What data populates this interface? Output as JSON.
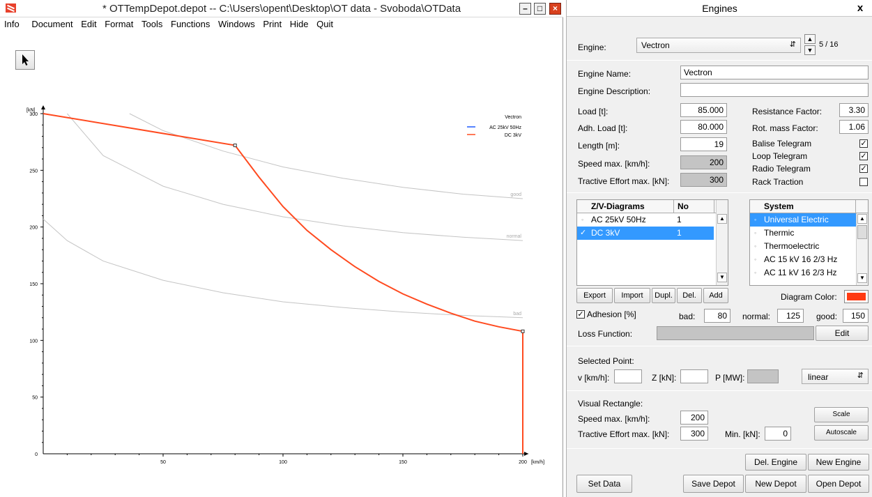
{
  "main_window": {
    "title": "* OTTempDepot.depot  --  C:\\Users\\opent\\Desktop\\OT data - Svoboda\\OTData",
    "menu": [
      "Info",
      "Document",
      "Edit",
      "Format",
      "Tools",
      "Functions",
      "Windows",
      "Print",
      "Hide",
      "Quit"
    ]
  },
  "chart_data": {
    "type": "line",
    "title": "",
    "xlabel": "[km/h]",
    "ylabel": "[kN]",
    "xlim": [
      0,
      200
    ],
    "ylim": [
      0,
      300
    ],
    "x_ticks": [
      50,
      100,
      150,
      200
    ],
    "y_ticks": [
      0,
      50,
      100,
      150,
      200,
      250,
      300
    ],
    "legend": {
      "title": "Vectron",
      "position": "top-right"
    },
    "series": [
      {
        "name": "AC 25kV 50Hz",
        "color": "#1e5bff",
        "x": [
          0,
          80,
          200
        ],
        "y": [
          300,
          272,
          108
        ]
      },
      {
        "name": "DC 3kV",
        "color": "#ff4a1f",
        "x": [
          0,
          80,
          90,
          100,
          110,
          120,
          130,
          140,
          150,
          160,
          170,
          180,
          190,
          200,
          200
        ],
        "y": [
          300,
          272,
          244,
          218,
          197,
          180,
          165,
          152,
          141,
          132,
          124,
          117,
          112,
          108,
          0
        ]
      }
    ],
    "adhesion_curves": [
      {
        "name": "good",
        "x": [
          36,
          50,
          75,
          100,
          125,
          150,
          175,
          200
        ],
        "y": [
          300,
          285,
          267,
          253,
          243,
          235,
          229,
          225
        ]
      },
      {
        "name": "normal",
        "x": [
          10,
          25,
          50,
          75,
          100,
          125,
          150,
          175,
          200
        ],
        "y": [
          300,
          263,
          236,
          220,
          209,
          201,
          195,
          191,
          188
        ]
      },
      {
        "name": "bad",
        "x": [
          0,
          10,
          25,
          50,
          75,
          100,
          125,
          150,
          175,
          200
        ],
        "y": [
          207,
          188,
          170,
          153,
          142,
          134,
          129,
          125,
          122,
          120
        ]
      }
    ]
  },
  "engines_panel": {
    "title": "Engines",
    "close": "x",
    "engine_label": "Engine:",
    "engine_selected": "Vectron",
    "engine_counter": "5 / 16",
    "engine_name_label": "Engine Name:",
    "engine_name": "Vectron",
    "engine_description_label": "Engine Description:",
    "engine_description": "",
    "load_label": "Load [t]:",
    "load": "85.000",
    "adh_load_label": "Adh. Load [t]:",
    "adh_load": "80.000",
    "length_label": "Length [m]:",
    "length": "19",
    "speed_max_label": "Speed max. [km/h]:",
    "speed_max": "200",
    "te_max_label": "Tractive Effort max. [kN]:",
    "te_max": "300",
    "resistance_label": "Resistance Factor:",
    "resistance": "3.30",
    "rot_mass_label": "Rot. mass Factor:",
    "rot_mass": "1.06",
    "balise_label": "Balise Telegram",
    "loop_label": "Loop Telegram",
    "radio_label": "Radio Telegram",
    "rack_label": "Rack Traction",
    "checks": {
      "balise": true,
      "loop": true,
      "radio": true,
      "rack": false
    },
    "diagrams": {
      "header_name": "Z/V-Diagrams",
      "header_no": "No",
      "rows": [
        {
          "name": "AC 25kV 50Hz",
          "no": "1"
        },
        {
          "name": "DC 3kV",
          "no": "1"
        }
      ]
    },
    "systems": {
      "header": "System",
      "rows": [
        "Universal Electric",
        "Thermic",
        "Thermoelectric",
        "AC 15 kV 16 2/3 Hz",
        "AC 11 kV 16 2/3 Hz"
      ]
    },
    "buttons": {
      "export": "Export",
      "import": "Import",
      "dupl": "Dupl.",
      "del": "Del.",
      "add": "Add",
      "edit": "Edit",
      "scale": "Scale",
      "autoscale": "Autoscale",
      "del_engine": "Del. Engine",
      "new_engine": "New Engine",
      "set_data": "Set Data",
      "save_depot": "Save Depot",
      "new_depot": "New Depot",
      "open_depot": "Open Depot"
    },
    "diagram_color_label": "Diagram Color:",
    "diagram_color": "#ff3a12",
    "adhesion_label": "Adhesion [%]",
    "bad_label": "bad:",
    "bad": "80",
    "normal_label": "normal:",
    "normal": "125",
    "good_label": "good:",
    "good": "150",
    "loss_function_label": "Loss Function:",
    "selected_point_label": "Selected Point:",
    "v_label": "v [km/h]:",
    "z_label": "Z [kN]:",
    "p_label": "P [MW]:",
    "interp": "linear",
    "visual_rect_label": "Visual Rectangle:",
    "vr_speed_label": "Speed max. [km/h]:",
    "vr_speed": "200",
    "vr_te_label": "Tractive Effort max. [kN]:",
    "vr_te": "300",
    "vr_min_label": "Min. [kN]:",
    "vr_min": "0"
  }
}
